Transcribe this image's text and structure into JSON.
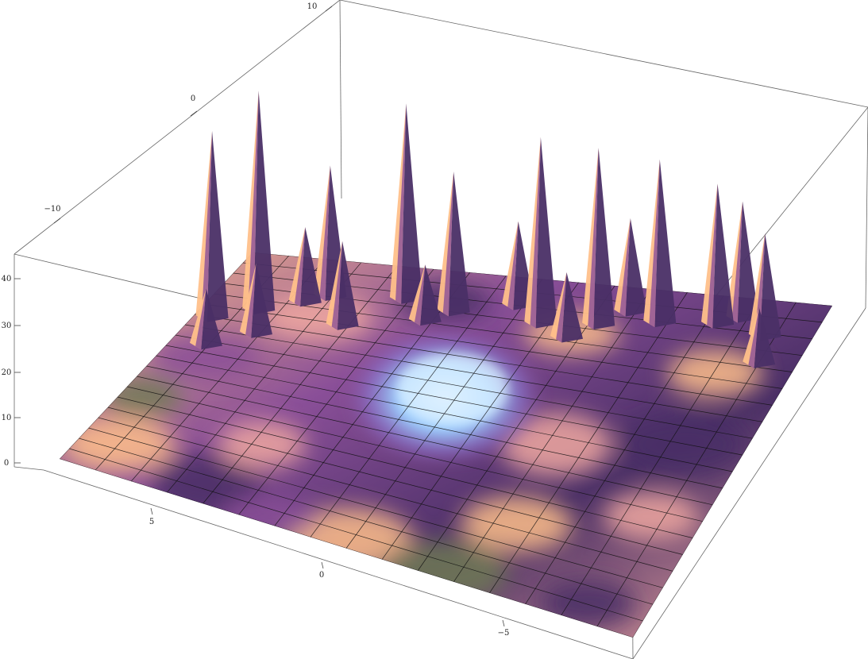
{
  "chart_data": {
    "type": "surface3d",
    "title": "",
    "x_axis": {
      "range": [
        -8,
        8
      ],
      "tick_labels": [
        "5",
        "0",
        "−5"
      ]
    },
    "y_axis": {
      "range": [
        -18,
        10
      ],
      "tick_labels": [
        "10",
        "0",
        "−10"
      ]
    },
    "z_axis": {
      "range": [
        0,
        45
      ],
      "tick_labels": [
        "0",
        "10",
        "20",
        "30",
        "40"
      ]
    },
    "mesh": true,
    "colors": {
      "deep_purple": "#4a2f66",
      "purple": "#8a4f98",
      "pink": "#f0a8a0",
      "peach": "#ffc08a",
      "olive": "#6f7a55",
      "light_blue": "#9cd0ff",
      "pale_blue": "#dcefff",
      "mesh": "#111111",
      "box": "#666666"
    },
    "peaks": [
      {
        "x": -7.0,
        "y": -13.5,
        "z": 22
      },
      {
        "x": -5.5,
        "y": -14.5,
        "z": 30
      },
      {
        "x": -4.0,
        "y": -14.0,
        "z": 35
      },
      {
        "x": -2.5,
        "y": -13.0,
        "z": 38
      },
      {
        "x": -1.0,
        "y": -12.5,
        "z": 40
      },
      {
        "x": 1.5,
        "y": -13.0,
        "z": 30
      },
      {
        "x": 3.0,
        "y": -14.0,
        "z": 42
      },
      {
        "x": 5.0,
        "y": -13.5,
        "z": 28
      },
      {
        "x": 6.5,
        "y": -11.0,
        "z": 47
      },
      {
        "x": 7.5,
        "y": -9.5,
        "z": 40
      },
      {
        "x": -6.0,
        "y": -15.5,
        "z": 25
      },
      {
        "x": -3.0,
        "y": -15.0,
        "z": 20
      },
      {
        "x": 0.0,
        "y": -14.5,
        "z": 18
      },
      {
        "x": 4.0,
        "y": -10.0,
        "z": 18
      },
      {
        "x": 6.0,
        "y": -8.0,
        "z": 15
      },
      {
        "x": 7.0,
        "y": -6.0,
        "z": 12
      },
      {
        "x": -7.5,
        "y": -10.0,
        "z": 12
      },
      {
        "x": -2.0,
        "y": -11.0,
        "z": 14
      },
      {
        "x": 2.0,
        "y": -11.5,
        "z": 12
      },
      {
        "x": 5.5,
        "y": -12.5,
        "z": 16
      }
    ]
  }
}
